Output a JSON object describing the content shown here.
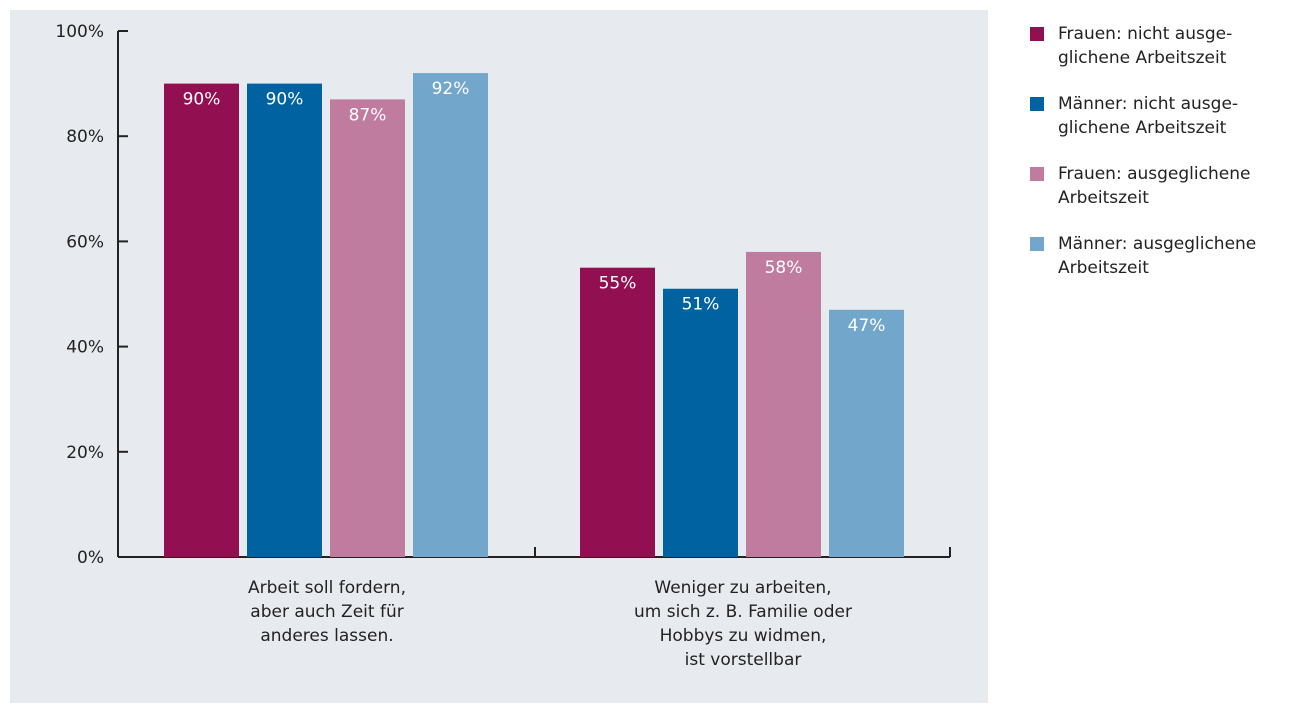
{
  "chart_data": {
    "type": "bar",
    "categories": [
      [
        "Arbeit soll fordern,",
        "aber auch Zeit für",
        "anderes lassen."
      ],
      [
        "Weniger zu arbeiten,",
        "um sich z. B. Familie oder",
        "Hobbys zu widmen,",
        "ist vorstellbar"
      ]
    ],
    "series": [
      {
        "name": "Frauen: nicht ausge-\nglichene Arbeitszeit",
        "color": "#920f52",
        "values": [
          90,
          55
        ],
        "labels": [
          "90%",
          "55%"
        ]
      },
      {
        "name": "Männer: nicht ausge-\nglichene Arbeitszeit",
        "color": "#0062a1",
        "values": [
          90,
          51
        ],
        "labels": [
          "90%",
          "51%"
        ]
      },
      {
        "name": "Frauen: ausgeglichene\nArbeitszeit",
        "color": "#bf7c9f",
        "values": [
          87,
          58
        ],
        "labels": [
          "87%",
          "58%"
        ]
      },
      {
        "name": "Männer: ausgeglichene\nArbeitszeit",
        "color": "#72a6ca",
        "values": [
          92,
          47
        ],
        "labels": [
          "92%",
          "47%"
        ]
      }
    ],
    "ylim": [
      0,
      100
    ],
    "yticks": [
      0,
      20,
      40,
      60,
      80,
      100
    ],
    "ytick_labels": [
      "0%",
      "20%",
      "40%",
      "60%",
      "80%",
      "100%"
    ],
    "xlabel": "",
    "ylabel": "",
    "legend": "right",
    "grid": false
  }
}
